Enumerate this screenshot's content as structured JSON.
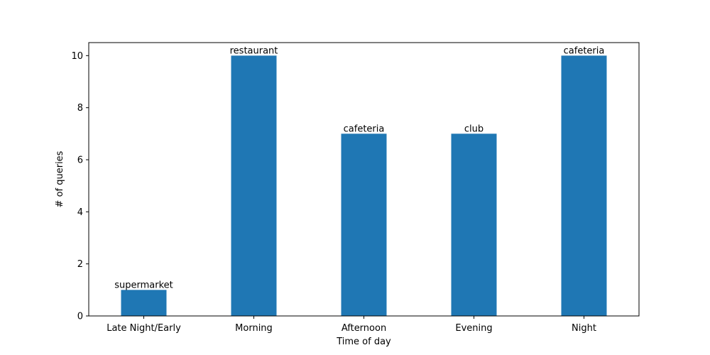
{
  "chart_data": {
    "type": "bar",
    "title": "",
    "xlabel": "Time of day",
    "ylabel": "# of queries",
    "categories": [
      "Late Night/Early",
      "Morning",
      "Afternoon",
      "Evening",
      "Night"
    ],
    "values": [
      1,
      10,
      7,
      7,
      10
    ],
    "bar_labels": [
      "supermarket",
      "restaurant",
      "cafeteria",
      "club",
      "cafeteria"
    ],
    "ylim": [
      0,
      10.5
    ],
    "yticks": [
      0,
      2,
      4,
      6,
      8,
      10
    ],
    "grid": false,
    "legend": "none",
    "bar_color": "#1f77b4"
  }
}
